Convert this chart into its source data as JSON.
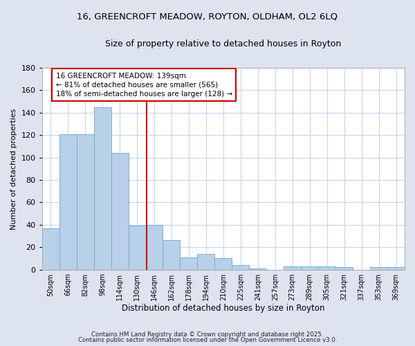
{
  "title1": "16, GREENCROFT MEADOW, ROYTON, OLDHAM, OL2 6LQ",
  "title2": "Size of property relative to detached houses in Royton",
  "xlabel": "Distribution of detached houses by size in Royton",
  "ylabel": "Number of detached properties",
  "bin_labels": [
    "50sqm",
    "66sqm",
    "82sqm",
    "98sqm",
    "114sqm",
    "130sqm",
    "146sqm",
    "162sqm",
    "178sqm",
    "194sqm",
    "210sqm",
    "225sqm",
    "241sqm",
    "257sqm",
    "273sqm",
    "289sqm",
    "305sqm",
    "321sqm",
    "337sqm",
    "353sqm",
    "369sqm"
  ],
  "bar_values": [
    37,
    121,
    121,
    145,
    104,
    39,
    40,
    26,
    11,
    14,
    10,
    4,
    1,
    0,
    3,
    3,
    3,
    2,
    0,
    2,
    2
  ],
  "bar_color": "#b8d0e8",
  "bar_edge_color": "#7aadd4",
  "annotation_text": "16 GREENCROFT MEADOW: 139sqm\n← 81% of detached houses are smaller (565)\n18% of semi-detached houses are larger (128) →",
  "annotation_box_color": "#ffffff",
  "annotation_box_edge": "#cc0000",
  "footer_text1": "Contains HM Land Registry data © Crown copyright and database right 2025.",
  "footer_text2": "Contains public sector information licensed under the Open Government Licence v3.0.",
  "figure_bg": "#dde3ef",
  "plot_bg": "#ffffff",
  "grid_color": "#c8d4e8",
  "ylim": [
    0,
    180
  ],
  "yticks": [
    0,
    20,
    40,
    60,
    80,
    100,
    120,
    140,
    160,
    180
  ],
  "red_line_color": "#cc0000",
  "title_fontsize": 9.5,
  "subtitle_fontsize": 9.0
}
